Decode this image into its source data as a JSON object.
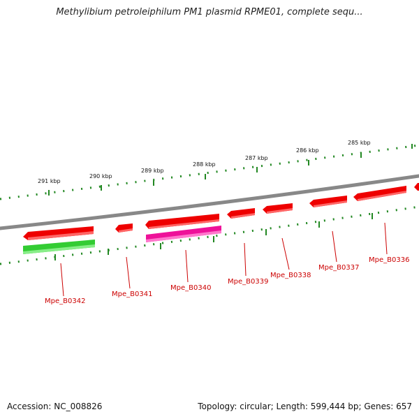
{
  "title": "Methylibium petroleiphilum PM1 plasmid RPME01, complete sequ...",
  "accession": "Accession: NC_008826",
  "summary": "Topology: circular; Length: 599,444 bp; Genes: 657",
  "scale_labels": [
    "291 kbp",
    "290 kbp",
    "289 kbp",
    "288 kbp",
    "287 kbp",
    "286 kbp",
    "285 kbp"
  ],
  "gene_labels": [
    "Mpe_B0342",
    "Mpe_B0341",
    "Mpe_B0340",
    "Mpe_B0339",
    "Mpe_B0338",
    "Mpe_B0337",
    "Mpe_B0336"
  ],
  "colors": {
    "gene_cds": "#ee0000",
    "gene_green": "#33cc33",
    "gene_magenta": "#ee1199",
    "backbone": "#888888",
    "ticks": "#228822",
    "label_text": "#cc0000"
  }
}
